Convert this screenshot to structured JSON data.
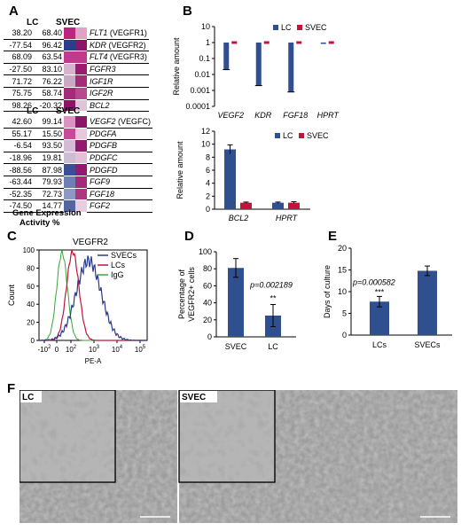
{
  "panels": {
    "A": "A",
    "B": "B",
    "C": "C",
    "D": "D",
    "E": "E",
    "F": "F"
  },
  "panel_a": {
    "col_lc": "LC",
    "col_svec": "SVEC",
    "table1": [
      {
        "lc": "38.20",
        "svec": "68.40",
        "gene": "FLT1",
        "alias": " (VEGFR1)",
        "c1": "#b8267e",
        "c2": "#e2a2c8"
      },
      {
        "lc": "-77.54",
        "svec": "96.42",
        "gene": "KDR",
        "alias": " (VEGFR2)",
        "c1": "#2a3f8c",
        "c2": "#8a1667"
      },
      {
        "lc": "68.09",
        "svec": "63.54",
        "gene": "FLT4",
        "alias": " (VEGFR3)",
        "c1": "#c23a8e",
        "c2": "#c23a8e"
      },
      {
        "lc": "-27.50",
        "svec": "83.10",
        "gene": "FGFR3",
        "alias": "",
        "c1": "#d7b3cf",
        "c2": "#9c1a72"
      },
      {
        "lc": "71.72",
        "svec": "76.22",
        "gene": "IGF1R",
        "alias": "",
        "c1": "#c8a9c6",
        "c2": "#a52a7a"
      },
      {
        "lc": "75.75",
        "svec": "58.74",
        "gene": "IGF2R",
        "alias": "",
        "c1": "#a52a7a",
        "c2": "#b8488f"
      },
      {
        "lc": "98.26",
        "svec": "-20.32",
        "gene": "BCL2",
        "alias": "",
        "c1": "#8a1667",
        "c2": "#dbc7d9"
      }
    ],
    "table2": [
      {
        "lc": "42.60",
        "svec": "99.14",
        "gene": "VEGF2",
        "alias": " (VEGFC)",
        "c1": "#dd93c2",
        "c2": "#8a1667"
      },
      {
        "lc": "55.17",
        "svec": "15.50",
        "gene": "PDGFA",
        "alias": "",
        "c1": "#c74b98",
        "c2": "#e7c9de"
      },
      {
        "lc": "-6.54",
        "svec": "93.50",
        "gene": "PDGFB",
        "alias": "",
        "c1": "#d6b9d4",
        "c2": "#931a6e"
      },
      {
        "lc": "-18.96",
        "svec": "19.81",
        "gene": "PDGFC",
        "alias": "",
        "c1": "#cdbdd4",
        "c2": "#e3bfd8"
      },
      {
        "lc": "-88.56",
        "svec": "87.98",
        "gene": "PDGFD",
        "alias": "",
        "c1": "#3b4f96",
        "c2": "#931a6e"
      },
      {
        "lc": "-63.44",
        "svec": "79.93",
        "gene": "FGF9",
        "alias": "",
        "c1": "#6e7fb6",
        "c2": "#a52a7a"
      },
      {
        "lc": "-52.35",
        "svec": "72.73",
        "gene": "FGF18",
        "alias": "",
        "c1": "#8d98c4",
        "c2": "#ab3880"
      },
      {
        "lc": "-74.50",
        "svec": "14.77",
        "gene": "FGF2",
        "alias": "",
        "c1": "#54659f",
        "c2": "#e8cfe0"
      }
    ],
    "caption_line1": "Gene Expression",
    "caption_line2": "Activity %"
  },
  "colors": {
    "lc": "#2f4f8f",
    "svec": "#c0143c",
    "heat_high": "#8a1667",
    "heat_low": "#2a3f8c",
    "flow_svec": "#2b3a8f",
    "flow_lc": "#c0143c",
    "flow_igg": "#3aa63a"
  },
  "chart_data": [
    {
      "id": "B-top",
      "type": "bar",
      "scale": "log",
      "ylabel": "Relative amount",
      "yticks": [
        "10",
        "1",
        "0.1",
        "0.01",
        "0.001",
        "0.0001"
      ],
      "categories": [
        "VEGF2",
        "KDR",
        "FGF18",
        "HPRT"
      ],
      "series": [
        {
          "name": "LC",
          "values": [
            0.02,
            0.002,
            0.0008,
            1
          ]
        },
        {
          "name": "SVEC",
          "values": [
            1,
            1,
            1,
            1
          ]
        }
      ],
      "ylim": [
        0.0001,
        10
      ],
      "legend": "top-right"
    },
    {
      "id": "B-bottom",
      "type": "bar",
      "ylabel": "Relative amount",
      "yticks": [
        "0",
        "2",
        "4",
        "6",
        "8",
        "10",
        "12"
      ],
      "categories": [
        "BCL2",
        "HPRT"
      ],
      "series": [
        {
          "name": "LC",
          "values": [
            9.2,
            1.0
          ],
          "err": [
            0.7,
            0.1
          ]
        },
        {
          "name": "SVEC",
          "values": [
            1.0,
            1.0
          ],
          "err": [
            0.1,
            0.15
          ]
        }
      ],
      "ylim": [
        0,
        12
      ],
      "legend": "top-right"
    },
    {
      "id": "C",
      "type": "line",
      "title": "VEGFR2",
      "ylabel": "Count",
      "xlabel": "PE-A",
      "yticks": [
        "0",
        "20",
        "40",
        "60",
        "80",
        "100"
      ],
      "xticks": [
        "-10^2",
        "0",
        "10^2",
        "10^3",
        "10^4",
        "10^5"
      ],
      "series": [
        {
          "name": "SVECs"
        },
        {
          "name": "LCs"
        },
        {
          "name": "IgG"
        }
      ],
      "legend": "top-right"
    },
    {
      "id": "D",
      "type": "bar",
      "ylabel_line1": "Percentage of",
      "ylabel_line2": "VEGFR2+ cells",
      "yticks": [
        "0",
        "20",
        "40",
        "60",
        "80",
        "100"
      ],
      "categories": [
        "SVEC",
        "LC"
      ],
      "values": [
        81,
        25
      ],
      "err": [
        11,
        13
      ],
      "ylim": [
        0,
        100
      ],
      "annotation": "p=0.002189",
      "signif": "**"
    },
    {
      "id": "E",
      "type": "bar",
      "ylabel": "Days of culture",
      "yticks": [
        "0",
        "5",
        "10",
        "15",
        "20"
      ],
      "categories": [
        "LCs",
        "SVECs"
      ],
      "values": [
        7.7,
        14.8
      ],
      "err": [
        1.2,
        1.1
      ],
      "ylim": [
        0,
        20
      ],
      "annotation": "p=0.000582",
      "signif": "***"
    }
  ],
  "panel_f": {
    "left_label": "LC",
    "right_label": "SVEC"
  }
}
